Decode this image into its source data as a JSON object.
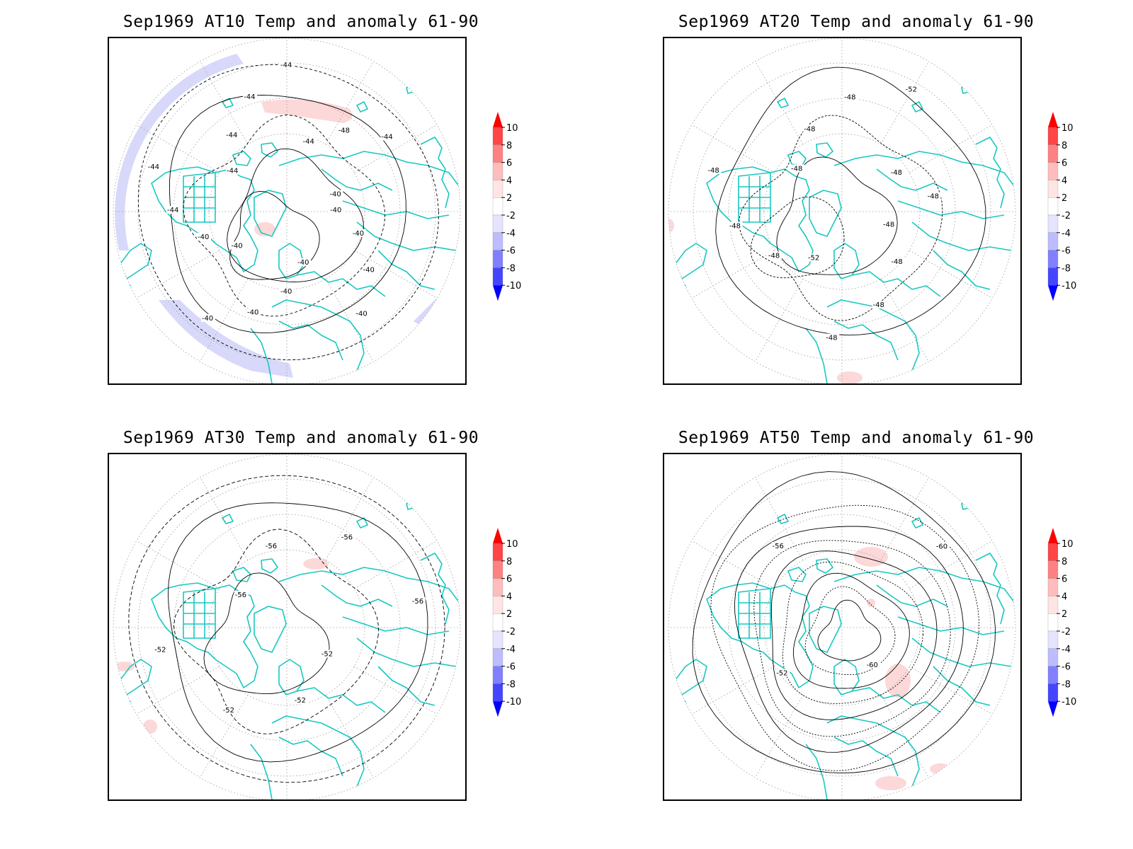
{
  "panels": [
    {
      "id": "at10",
      "title": "Sep1969 AT10 Temp and anomaly 61-90",
      "contour_labels": [
        "-40",
        "-40",
        "-40",
        "-40",
        "-40",
        "-40",
        "-40",
        "-40",
        "-40",
        "-40",
        "-44",
        "-44",
        "-44",
        "-44",
        "-44",
        "-44",
        "-44",
        "-48",
        "-44",
        "-40"
      ],
      "anomaly_patches": [
        {
          "kind": "ring-neg",
          "sign": "negative",
          "level": "-2"
        },
        {
          "kind": "pos",
          "sign": "positive",
          "level": "2"
        },
        {
          "kind": "pos-small",
          "sign": "positive",
          "level": "2"
        }
      ]
    },
    {
      "id": "at20",
      "title": "Sep1969 AT20 Temp and anomaly 61-90",
      "contour_labels": [
        "-48",
        "-48",
        "-48",
        "-48",
        "-52",
        "-48",
        "-48",
        "-48",
        "-48",
        "-48",
        "-48",
        "-52",
        "-48",
        "-48"
      ],
      "anomaly_patches": [
        {
          "kind": "pos-small",
          "sign": "positive",
          "level": "2"
        }
      ]
    },
    {
      "id": "at30",
      "title": "Sep1969 AT30 Temp and anomaly 61-90",
      "contour_labels": [
        "-52",
        "-52",
        "-52",
        "-52",
        "-56",
        "-56",
        "-56",
        "-56"
      ],
      "anomaly_patches": [
        {
          "kind": "pos",
          "sign": "positive",
          "level": "2"
        }
      ]
    },
    {
      "id": "at50",
      "title": "Sep1969 AT50 Temp and anomaly 61-90",
      "contour_labels": [
        "-60",
        "-52",
        "-56",
        "-60"
      ],
      "anomaly_patches": [
        {
          "kind": "pos",
          "sign": "positive",
          "level": "2"
        }
      ]
    }
  ],
  "colorbar": {
    "labels": [
      "10",
      "8",
      "6",
      "4",
      "2",
      "-2",
      "-4",
      "-6",
      "-8",
      "-10"
    ],
    "colors": [
      "#ff0000",
      "#ff4545",
      "#ff8080",
      "#ffbcbc",
      "#ffe4e4",
      "#ffffff",
      "#e4e4ff",
      "#bcbcff",
      "#8080ff",
      "#4545ff",
      "#0000ff"
    ]
  },
  "colors": {
    "coast": "#19c8c0",
    "contour": "#000000",
    "grid": "#9a9a9a",
    "neg_fill": "#d8d8fa",
    "pos_fill": "#fcd8d8"
  }
}
